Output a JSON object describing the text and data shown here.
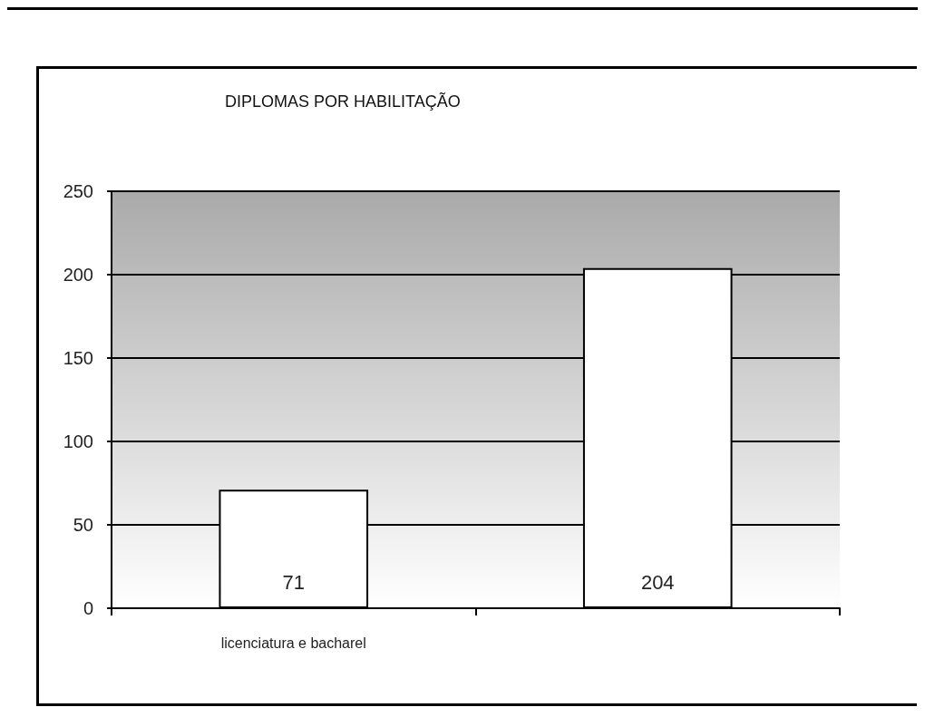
{
  "chart_data": {
    "type": "bar",
    "title": "DIPLOMAS POR HABILITAÇÃO",
    "categories": [
      "licenciatura e bacharel",
      null
    ],
    "values": [
      71,
      204
    ],
    "color": "#ffffff",
    "ylim": [
      0,
      250
    ],
    "yticks": [
      0,
      50,
      100,
      150,
      200,
      250
    ],
    "grid": "y",
    "data_labels": true
  }
}
